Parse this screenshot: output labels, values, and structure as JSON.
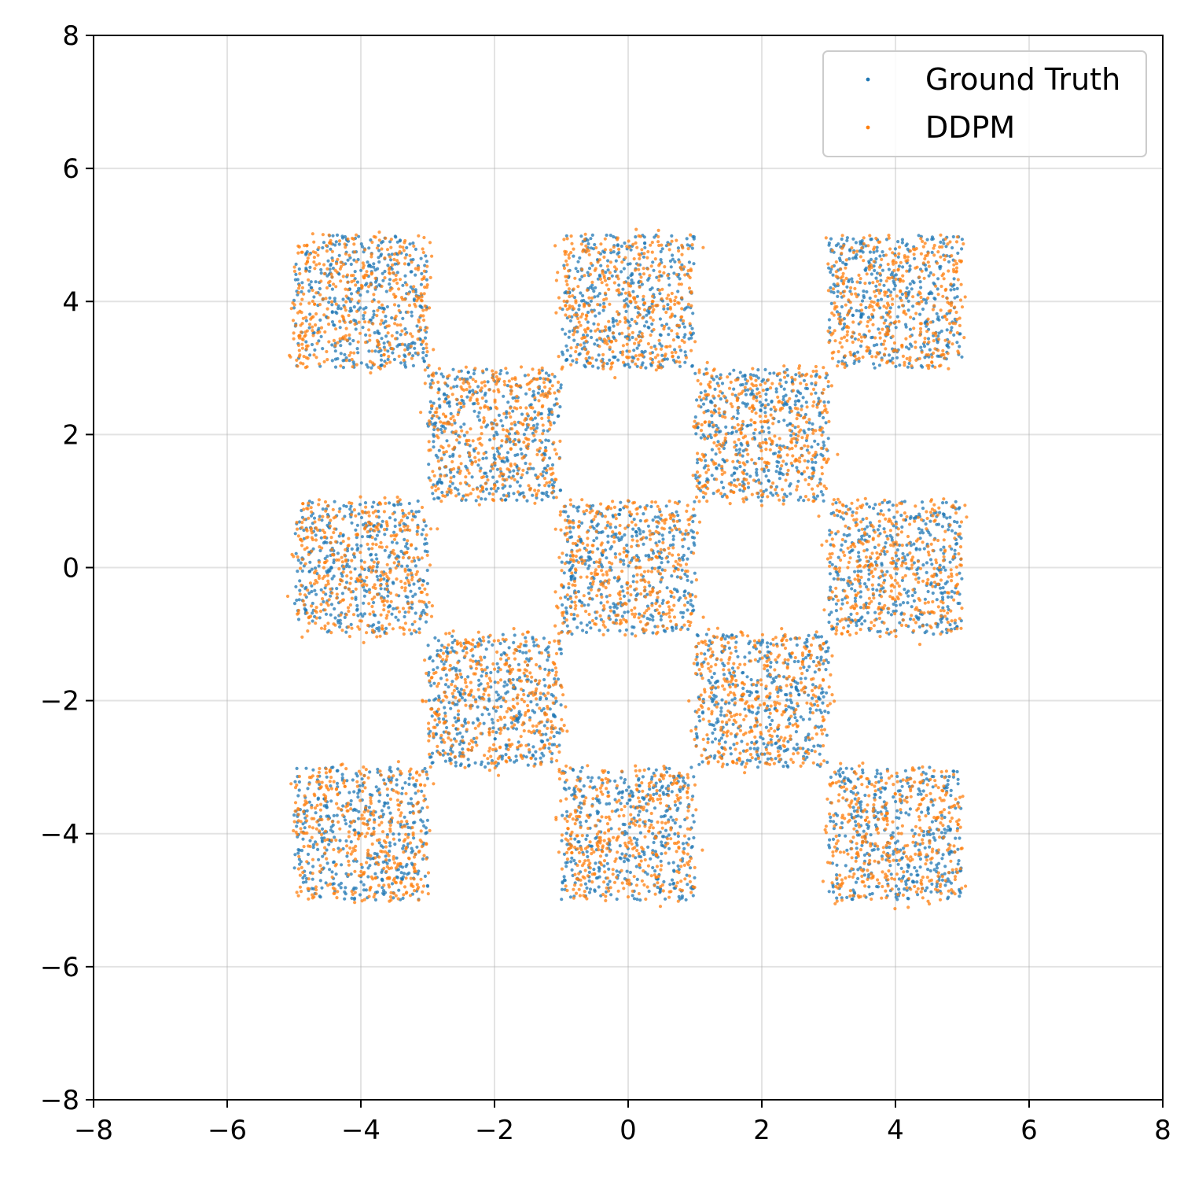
{
  "chart_data": {
    "type": "scatter",
    "title": "",
    "xlabel": "",
    "ylabel": "",
    "xlim": [
      -8,
      8
    ],
    "ylim": [
      -8,
      8
    ],
    "x_ticks": [
      -8,
      -6,
      -4,
      -2,
      0,
      2,
      4,
      6,
      8
    ],
    "y_ticks": [
      -8,
      -6,
      -4,
      -2,
      0,
      2,
      4,
      6,
      8
    ],
    "x_tick_labels": [
      "−8",
      "−6",
      "−4",
      "−2",
      "0",
      "2",
      "4",
      "6",
      "8"
    ],
    "y_tick_labels": [
      "−8",
      "−6",
      "−4",
      "−2",
      "0",
      "2",
      "4",
      "6",
      "8"
    ],
    "grid": true,
    "legend_position": "top-right",
    "checkerboard_cells": [
      {
        "x_range": [
          -5,
          -3
        ],
        "y_range": [
          3,
          5
        ]
      },
      {
        "x_range": [
          -1,
          1
        ],
        "y_range": [
          3,
          5
        ]
      },
      {
        "x_range": [
          3,
          5
        ],
        "y_range": [
          3,
          5
        ]
      },
      {
        "x_range": [
          -3,
          -1
        ],
        "y_range": [
          1,
          3
        ]
      },
      {
        "x_range": [
          1,
          3
        ],
        "y_range": [
          1,
          3
        ]
      },
      {
        "x_range": [
          -5,
          -3
        ],
        "y_range": [
          -1,
          1
        ]
      },
      {
        "x_range": [
          -1,
          1
        ],
        "y_range": [
          -1,
          1
        ]
      },
      {
        "x_range": [
          3,
          5
        ],
        "y_range": [
          -1,
          1
        ]
      },
      {
        "x_range": [
          -3,
          -1
        ],
        "y_range": [
          -3,
          -1
        ]
      },
      {
        "x_range": [
          1,
          3
        ],
        "y_range": [
          -3,
          -1
        ]
      },
      {
        "x_range": [
          -5,
          -3
        ],
        "y_range": [
          -5,
          -3
        ]
      },
      {
        "x_range": [
          -1,
          1
        ],
        "y_range": [
          -5,
          -3
        ]
      },
      {
        "x_range": [
          3,
          5
        ],
        "y_range": [
          -5,
          -3
        ]
      }
    ],
    "series": [
      {
        "name": "Ground Truth",
        "color": "#1f77b4",
        "distribution": "uniform within each checkerboard cell",
        "points_per_cell": 400
      },
      {
        "name": "DDPM",
        "color": "#ff7f0e",
        "distribution": "approximately uniform within each checkerboard cell with slight spread beyond edges",
        "points_per_cell": 400
      }
    ]
  },
  "legend": {
    "items": [
      {
        "label": "Ground Truth",
        "color": "#1f77b4"
      },
      {
        "label": "DDPM",
        "color": "#ff7f0e"
      }
    ]
  }
}
